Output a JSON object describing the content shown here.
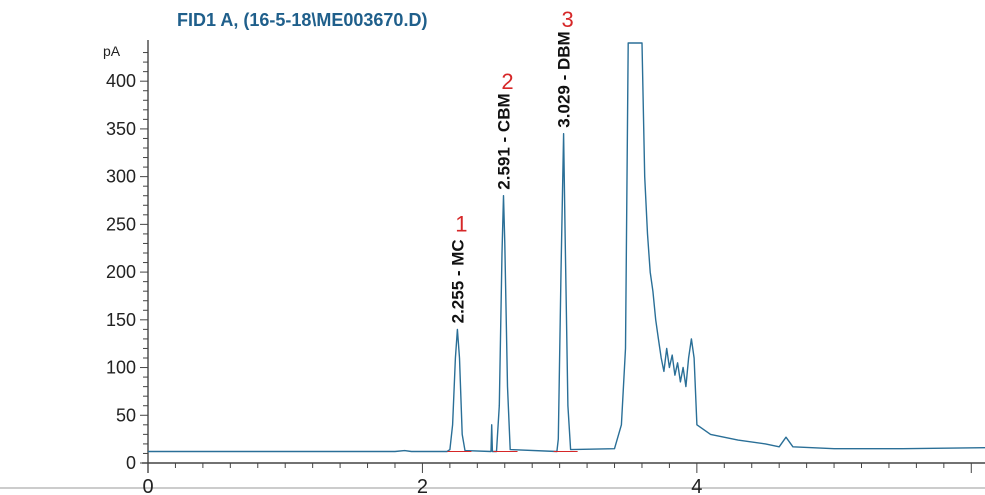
{
  "chart_data": {
    "type": "line",
    "title": "FID1 A,  (16-5-18\\ME003670.D)",
    "ylabel": "pA",
    "xlabel": "",
    "xlim": [
      0,
      6.1
    ],
    "ylim": [
      0,
      440
    ],
    "x_ticks": [
      "0",
      "2",
      "4"
    ],
    "x_tick_values": [
      0,
      2,
      4
    ],
    "y_ticks": [
      "0",
      "50",
      "100",
      "150",
      "200",
      "250",
      "300",
      "350",
      "400"
    ],
    "y_tick_values": [
      0,
      50,
      100,
      150,
      200,
      250,
      300,
      350,
      400
    ],
    "grid": false,
    "line_color": "#2a6f97",
    "title_color": "#1f5f8b",
    "number_color": "#d62728",
    "peaks": [
      {
        "rt": 2.255,
        "height": 140,
        "label": "2.255 - MC",
        "number": "1"
      },
      {
        "rt": 2.591,
        "height": 280,
        "label": "2.591 - CBM",
        "number": "2"
      },
      {
        "rt": 3.029,
        "height": 345,
        "label": "3.029 - DBM",
        "number": "3"
      }
    ],
    "series": [
      {
        "points": [
          [
            0.0,
            12
          ],
          [
            1.8,
            12
          ],
          [
            1.87,
            13
          ],
          [
            1.92,
            12
          ],
          [
            2.18,
            12
          ],
          [
            2.2,
            14
          ],
          [
            2.22,
            40
          ],
          [
            2.24,
            110
          ],
          [
            2.255,
            140
          ],
          [
            2.27,
            110
          ],
          [
            2.29,
            30
          ],
          [
            2.31,
            13
          ],
          [
            2.5,
            12
          ],
          [
            2.505,
            40
          ],
          [
            2.51,
            12
          ],
          [
            2.54,
            12
          ],
          [
            2.56,
            60
          ],
          [
            2.58,
            220
          ],
          [
            2.591,
            280
          ],
          [
            2.6,
            230
          ],
          [
            2.62,
            80
          ],
          [
            2.64,
            14
          ],
          [
            2.98,
            12
          ],
          [
            2.99,
            25
          ],
          [
            3.01,
            200
          ],
          [
            3.029,
            345
          ],
          [
            3.04,
            240
          ],
          [
            3.06,
            60
          ],
          [
            3.08,
            14
          ],
          [
            3.4,
            15
          ],
          [
            3.45,
            40
          ],
          [
            3.48,
            120
          ],
          [
            3.5,
            440
          ],
          [
            3.6,
            440
          ],
          [
            3.62,
            300
          ],
          [
            3.64,
            240
          ],
          [
            3.66,
            200
          ],
          [
            3.68,
            180
          ],
          [
            3.7,
            150
          ],
          [
            3.72,
            130
          ],
          [
            3.74,
            110
          ],
          [
            3.76,
            96
          ],
          [
            3.78,
            120
          ],
          [
            3.8,
            100
          ],
          [
            3.82,
            113
          ],
          [
            3.84,
            92
          ],
          [
            3.86,
            105
          ],
          [
            3.88,
            85
          ],
          [
            3.9,
            100
          ],
          [
            3.92,
            80
          ],
          [
            3.94,
            110
          ],
          [
            3.96,
            130
          ],
          [
            3.98,
            110
          ],
          [
            4.0,
            40
          ],
          [
            4.1,
            30
          ],
          [
            4.3,
            24
          ],
          [
            4.5,
            20
          ],
          [
            4.6,
            17
          ],
          [
            4.65,
            27
          ],
          [
            4.7,
            17
          ],
          [
            5.0,
            15
          ],
          [
            5.5,
            15
          ],
          [
            6.1,
            16
          ]
        ]
      }
    ]
  }
}
